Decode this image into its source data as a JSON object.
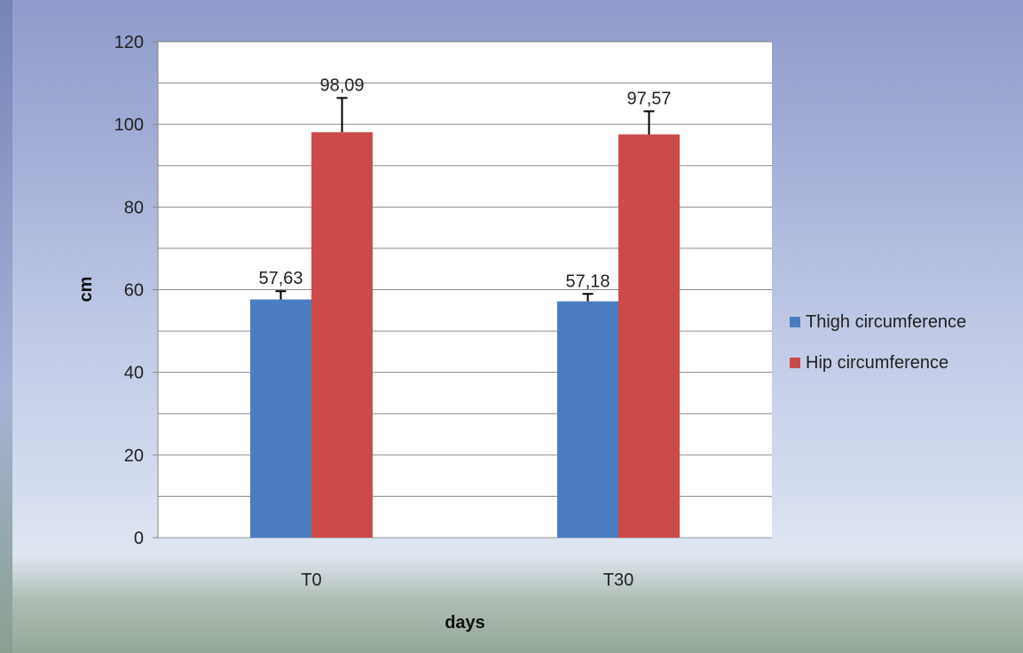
{
  "chart_data": {
    "type": "bar",
    "categories": [
      "T0",
      "T30"
    ],
    "series": [
      {
        "name": "Thigh circumference",
        "values": [
          57.63,
          57.18
        ],
        "errors": [
          2.0,
          1.8
        ],
        "labels": [
          "57,63",
          "57,18"
        ],
        "color": "#4a7cbf"
      },
      {
        "name": "Hip circumference",
        "values": [
          98.09,
          97.57
        ],
        "errors": [
          8.3,
          5.6
        ],
        "labels": [
          "98,09",
          "97,57"
        ],
        "color": "#cc4a4a"
      }
    ],
    "xlabel": "days",
    "ylabel": "cm",
    "ylim": [
      0,
      120
    ],
    "yticks": [
      "0",
      "20",
      "40",
      "60",
      "80",
      "100",
      "120"
    ],
    "grid": true,
    "legend_position": "right"
  }
}
